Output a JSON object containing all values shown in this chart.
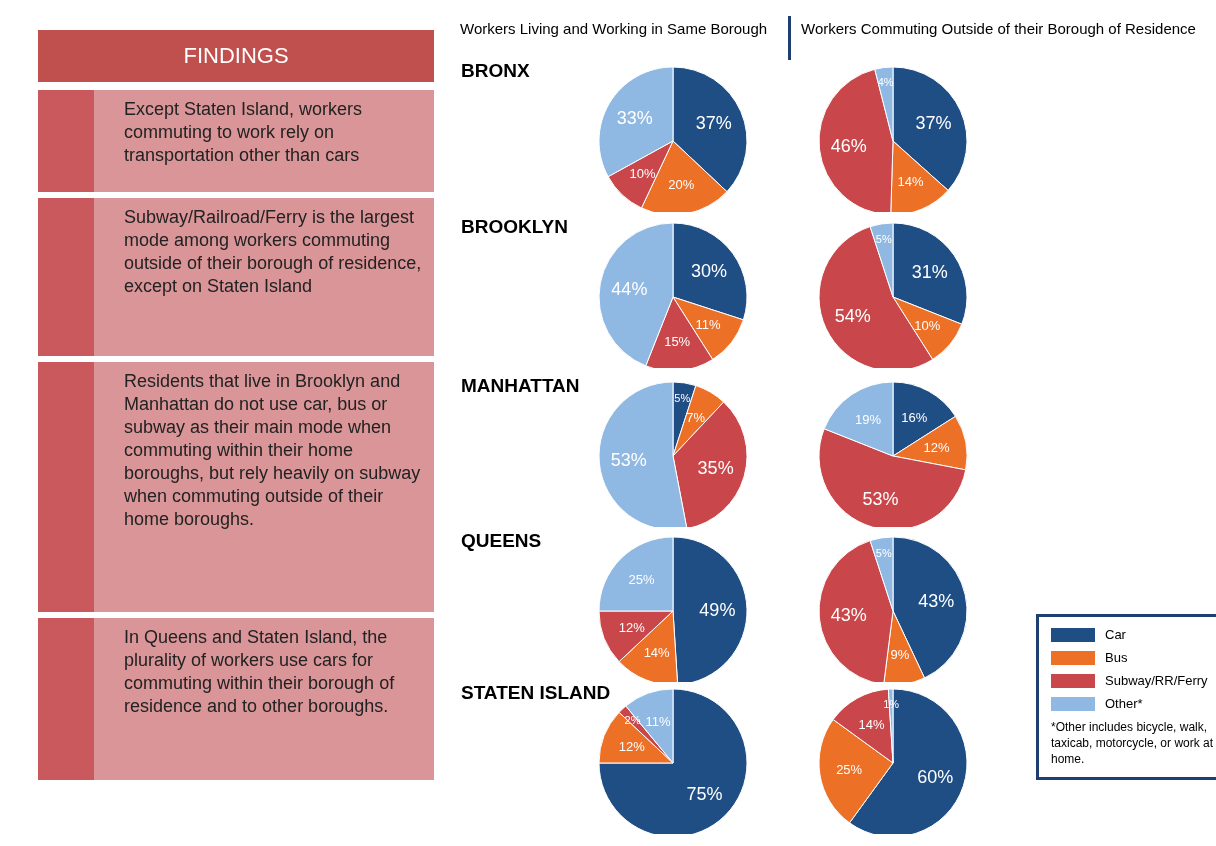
{
  "chart_data": [
    {
      "type": "other",
      "title": "FINDINGS",
      "annotations": [
        "Except Staten Island, workers commuting to work rely on transportation other than cars",
        "Subway/Railroad/Ferry is the largest mode among workers commuting outside of their borough of residence, except on Staten Island",
        "Residents that live in Brooklyn and Manhattan do not use car, bus or subway as their main mode when commuting within their home boroughs, but rely heavily on subway when commuting outside of their home boroughs.",
        "In Queens and Staten Island, the plurality of workers use cars for commuting within their borough of residence and to other boroughs."
      ]
    },
    {
      "type": "pie",
      "title": "BRONX",
      "subtitle": "Workers Living and Working in Same Borough",
      "categories": [
        null,
        null,
        null,
        null
      ],
      "values": [
        37,
        20,
        10,
        33
      ],
      "value_labels": [
        "37%",
        "20%",
        "10%",
        "33%"
      ],
      "colors": [
        "#1f4e85",
        "#ed7027",
        "#c9474a",
        "#8fb9e3"
      ]
    },
    {
      "type": "pie",
      "subtitle": "Workers Commuting Outside of their Borough of Residence",
      "categories": [
        null,
        null,
        null,
        null
      ],
      "values": [
        37,
        14,
        46,
        4
      ],
      "value_labels": [
        "37%",
        "14%",
        "46%",
        "4%"
      ],
      "colors": [
        "#1f4e85",
        "#ed7027",
        "#c9474a",
        "#8fb9e3"
      ]
    },
    {
      "type": "pie",
      "title": "BROOKLYN",
      "categories": [
        null,
        null,
        null,
        null
      ],
      "values": [
        30,
        11,
        15,
        44
      ],
      "value_labels": [
        "30%",
        "11%",
        "15%",
        "44%"
      ],
      "colors": [
        "#1f4e85",
        "#ed7027",
        "#c9474a",
        "#8fb9e3"
      ]
    },
    {
      "type": "pie",
      "categories": [
        null,
        null,
        null,
        null
      ],
      "values": [
        31,
        10,
        54,
        5
      ],
      "value_labels": [
        "31%",
        "10%",
        "54%",
        "5%"
      ],
      "colors": [
        "#1f4e85",
        "#ed7027",
        "#c9474a",
        "#8fb9e3"
      ]
    },
    {
      "type": "pie",
      "title": "MANHATTAN",
      "categories": [
        null,
        null,
        null,
        null
      ],
      "values": [
        5,
        7,
        35,
        53
      ],
      "value_labels": [
        "5%",
        "7%",
        "35%",
        "53%"
      ],
      "colors": [
        "#1f4e85",
        "#ed7027",
        "#c9474a",
        "#8fb9e3"
      ]
    },
    {
      "type": "pie",
      "categories": [
        null,
        null,
        null,
        null
      ],
      "values": [
        16,
        12,
        53,
        19
      ],
      "value_labels": [
        "16%",
        "12%",
        "53%",
        "19%"
      ],
      "colors": [
        "#1f4e85",
        "#ed7027",
        "#c9474a",
        "#8fb9e3"
      ]
    },
    {
      "type": "pie",
      "title": "QUEENS",
      "categories": [
        null,
        null,
        null,
        null
      ],
      "values": [
        49,
        14,
        12,
        25
      ],
      "value_labels": [
        "49%",
        "14%",
        "12%",
        "25%"
      ],
      "colors": [
        "#1f4e85",
        "#ed7027",
        "#c9474a",
        "#8fb9e3"
      ]
    },
    {
      "type": "pie",
      "categories": [
        null,
        null,
        null,
        null
      ],
      "values": [
        43,
        9,
        43,
        5
      ],
      "value_labels": [
        "43%",
        "9%",
        "43%",
        "5%"
      ],
      "colors": [
        "#1f4e85",
        "#ed7027",
        "#c9474a",
        "#8fb9e3"
      ]
    },
    {
      "type": "pie",
      "title": "STATEN ISLAND",
      "categories": [
        null,
        null,
        null,
        null
      ],
      "values": [
        75,
        12,
        2,
        11
      ],
      "value_labels": [
        "75%",
        "12%",
        "2%",
        "11%"
      ],
      "colors": [
        "#1f4e85",
        "#ed7027",
        "#c9474a",
        "#8fb9e3"
      ]
    },
    {
      "type": "pie",
      "categories": [
        "Car",
        "Bus",
        "Subway/RR/Ferry",
        "Other*"
      ],
      "values": [
        60,
        25,
        14,
        1
      ],
      "value_labels": [
        "60%",
        "25%",
        "14%",
        "1%"
      ],
      "colors": [
        "#1f4e85",
        "#ed7027",
        "#c9474a",
        "#8fb9e3"
      ],
      "legend": "right",
      "annotations": [
        "*Other includes bicycle, walk, taxicab, motorcycle, or work at home."
      ]
    }
  ]
}
